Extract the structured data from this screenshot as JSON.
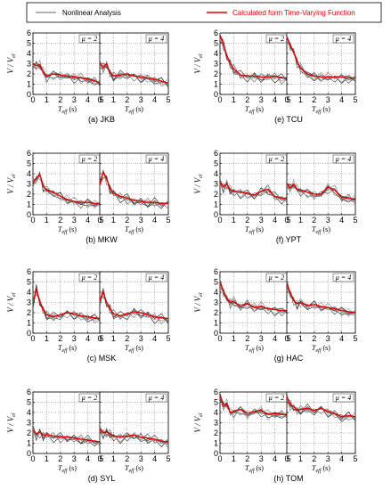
{
  "legend": {
    "nonlinear": "Nonlinear Analysis",
    "calculated": "Calculated form Time-Varying Function",
    "nonlinear_color": "#666666",
    "calculated_color": "#e00000"
  },
  "axes_common": {
    "xlabel": "T",
    "xlabel_sub": "eff",
    "xlabel_unit": " (s)",
    "ylabel": "V",
    "ylabel_mid": " / V",
    "ylabel_sub": "el",
    "xlim": [
      0,
      5
    ],
    "ylim": [
      0,
      6
    ],
    "xticks": [
      0,
      1,
      2,
      3,
      4,
      5
    ],
    "yticks": [
      0,
      1,
      2,
      3,
      4,
      5,
      6
    ]
  },
  "panel_labels": [
    "(a) JKB",
    "(e) TCU",
    "(b) MKW",
    "(f) YPT",
    "(c) MSK",
    "(g) HAC",
    "(d) SYL",
    "(h) TOM"
  ],
  "mu_labels": [
    "μ = 2",
    "μ = 4"
  ],
  "chart_data": [
    {
      "type": "line",
      "group": "(a) JKB",
      "mu": "μ = 2",
      "x": [
        0,
        0.25,
        0.5,
        0.75,
        1.0,
        1.5,
        2.0,
        2.5,
        3.0,
        3.5,
        4.0,
        4.5,
        5.0
      ],
      "series": [
        {
          "name": "Calculated form Time-Varying Function",
          "values": [
            3.0,
            2.8,
            2.9,
            2.2,
            1.8,
            2.0,
            1.9,
            1.8,
            1.7,
            1.6,
            1.5,
            1.3,
            1.1
          ]
        }
      ]
    },
    {
      "type": "line",
      "group": "(a) JKB",
      "mu": "μ = 4",
      "x": [
        0,
        0.25,
        0.5,
        0.75,
        1.0,
        1.5,
        2.0,
        2.5,
        3.0,
        3.5,
        4.0,
        4.5,
        5.0
      ],
      "series": [
        {
          "name": "Calculated form Time-Varying Function",
          "values": [
            3.1,
            2.6,
            3.0,
            2.1,
            1.8,
            1.9,
            2.0,
            1.8,
            1.7,
            1.6,
            1.5,
            1.3,
            1.1
          ]
        }
      ]
    },
    {
      "type": "line",
      "group": "(e) TCU",
      "mu": "μ = 2",
      "x": [
        0,
        0.25,
        0.5,
        0.75,
        1.0,
        1.5,
        2.0,
        2.5,
        3.0,
        3.5,
        4.0,
        4.5,
        5.0
      ],
      "series": [
        {
          "name": "Calculated form Time-Varying Function",
          "values": [
            5.8,
            4.9,
            3.8,
            3.0,
            2.5,
            1.9,
            1.8,
            1.8,
            1.7,
            1.7,
            1.8,
            1.6,
            1.6
          ]
        }
      ]
    },
    {
      "type": "line",
      "group": "(e) TCU",
      "mu": "μ = 4",
      "x": [
        0,
        0.25,
        0.5,
        0.75,
        1.0,
        1.5,
        2.0,
        2.5,
        3.0,
        3.5,
        4.0,
        4.5,
        5.0
      ],
      "series": [
        {
          "name": "Calculated form Time-Varying Function",
          "values": [
            5.6,
            4.8,
            4.2,
            3.2,
            2.6,
            2.0,
            1.8,
            1.7,
            1.7,
            1.7,
            1.7,
            1.6,
            1.6
          ]
        }
      ]
    },
    {
      "type": "line",
      "group": "(b) MKW",
      "mu": "μ = 2",
      "x": [
        0,
        0.25,
        0.5,
        0.75,
        1.0,
        1.5,
        2.0,
        2.5,
        3.0,
        3.5,
        4.0,
        4.5,
        5.0
      ],
      "series": [
        {
          "name": "Calculated form Time-Varying Function",
          "values": [
            3.1,
            3.6,
            3.9,
            2.8,
            2.4,
            2.2,
            1.8,
            1.5,
            1.3,
            1.2,
            1.2,
            1.1,
            1.1
          ]
        }
      ]
    },
    {
      "type": "line",
      "group": "(b) MKW",
      "mu": "μ = 4",
      "x": [
        0,
        0.25,
        0.5,
        0.75,
        1.0,
        1.5,
        2.0,
        2.5,
        3.0,
        3.5,
        4.0,
        4.5,
        5.0
      ],
      "series": [
        {
          "name": "Calculated form Time-Varying Function",
          "values": [
            2.9,
            4.2,
            3.5,
            2.6,
            2.1,
            1.8,
            1.6,
            1.4,
            1.3,
            1.2,
            1.2,
            1.1,
            1.1
          ]
        }
      ]
    },
    {
      "type": "line",
      "group": "(f) YPT",
      "mu": "μ = 2",
      "x": [
        0,
        0.25,
        0.5,
        0.75,
        1.0,
        1.5,
        2.0,
        2.5,
        3.0,
        3.5,
        4.0,
        4.5,
        5.0
      ],
      "series": [
        {
          "name": "Calculated form Time-Varying Function",
          "values": [
            3.2,
            2.7,
            3.0,
            2.4,
            2.3,
            2.2,
            2.1,
            1.9,
            2.3,
            2.5,
            1.8,
            1.6,
            1.6
          ]
        }
      ]
    },
    {
      "type": "line",
      "group": "(f) YPT",
      "mu": "μ = 4",
      "x": [
        0,
        0.25,
        0.5,
        0.75,
        1.0,
        1.5,
        2.0,
        2.5,
        3.0,
        3.5,
        4.0,
        4.5,
        5.0
      ],
      "series": [
        {
          "name": "Calculated form Time-Varying Function",
          "values": [
            3.1,
            2.6,
            3.0,
            2.5,
            2.4,
            2.2,
            2.0,
            2.0,
            2.7,
            2.4,
            1.7,
            1.6,
            1.5
          ]
        }
      ]
    },
    {
      "type": "line",
      "group": "(c) MSK",
      "mu": "μ = 2",
      "x": [
        0,
        0.25,
        0.5,
        0.75,
        1.0,
        1.5,
        2.0,
        2.5,
        3.0,
        3.5,
        4.0,
        4.5,
        5.0
      ],
      "series": [
        {
          "name": "Calculated form Time-Varying Function",
          "values": [
            3.0,
            4.3,
            3.1,
            2.3,
            1.8,
            1.6,
            1.8,
            2.0,
            1.9,
            1.7,
            1.6,
            1.5,
            1.4
          ]
        }
      ]
    },
    {
      "type": "line",
      "group": "(c) MSK",
      "mu": "μ = 4",
      "x": [
        0,
        0.25,
        0.5,
        0.75,
        1.0,
        1.5,
        2.0,
        2.5,
        3.0,
        3.5,
        4.0,
        4.5,
        5.0
      ],
      "series": [
        {
          "name": "Calculated form Time-Varying Function",
          "values": [
            3.2,
            4.0,
            3.0,
            2.4,
            1.9,
            1.7,
            1.9,
            2.1,
            2.0,
            1.8,
            1.6,
            1.5,
            1.4
          ]
        }
      ]
    },
    {
      "type": "line",
      "group": "(g) HAC",
      "mu": "μ = 2",
      "x": [
        0,
        0.25,
        0.5,
        0.75,
        1.0,
        1.5,
        2.0,
        2.5,
        3.0,
        3.5,
        4.0,
        4.5,
        5.0
      ],
      "series": [
        {
          "name": "Calculated form Time-Varying Function",
          "values": [
            5.0,
            4.1,
            3.4,
            3.0,
            3.1,
            2.6,
            2.9,
            2.5,
            2.6,
            2.4,
            2.3,
            2.2,
            2.2
          ]
        }
      ]
    },
    {
      "type": "line",
      "group": "(g) HAC",
      "mu": "μ = 4",
      "x": [
        0,
        0.25,
        0.5,
        0.75,
        1.0,
        1.5,
        2.0,
        2.5,
        3.0,
        3.5,
        4.0,
        4.5,
        5.0
      ],
      "series": [
        {
          "name": "Calculated form Time-Varying Function",
          "values": [
            4.8,
            4.0,
            3.2,
            2.9,
            3.0,
            2.7,
            2.8,
            2.6,
            2.5,
            2.4,
            2.2,
            2.1,
            2.0
          ]
        }
      ]
    },
    {
      "type": "line",
      "group": "(d) SYL",
      "mu": "μ = 2",
      "x": [
        0,
        0.25,
        0.5,
        0.75,
        1.0,
        1.5,
        2.0,
        2.5,
        3.0,
        3.5,
        4.0,
        4.5,
        5.0
      ],
      "series": [
        {
          "name": "Calculated form Time-Varying Function",
          "values": [
            2.3,
            1.9,
            2.1,
            1.8,
            1.8,
            1.7,
            1.6,
            1.6,
            1.5,
            1.4,
            1.3,
            1.2,
            1.1
          ]
        }
      ]
    },
    {
      "type": "line",
      "group": "(d) SYL",
      "mu": "μ = 4",
      "x": [
        0,
        0.25,
        0.5,
        0.75,
        1.0,
        1.5,
        2.0,
        2.5,
        3.0,
        3.5,
        4.0,
        4.5,
        5.0
      ],
      "series": [
        {
          "name": "Calculated form Time-Varying Function",
          "values": [
            2.4,
            2.0,
            2.1,
            1.9,
            1.7,
            1.6,
            1.7,
            1.8,
            1.6,
            1.5,
            1.4,
            1.2,
            1.1
          ]
        }
      ]
    },
    {
      "type": "line",
      "group": "(h) TOM",
      "mu": "μ = 2",
      "x": [
        0,
        0.25,
        0.5,
        0.75,
        1.0,
        1.5,
        2.0,
        2.5,
        3.0,
        3.5,
        4.0,
        4.5,
        5.0
      ],
      "series": [
        {
          "name": "Calculated form Time-Varying Function",
          "values": [
            5.8,
            4.6,
            4.9,
            4.0,
            4.1,
            4.3,
            3.9,
            4.1,
            4.2,
            3.8,
            3.9,
            3.8,
            3.8
          ]
        }
      ]
    },
    {
      "type": "line",
      "group": "(h) TOM",
      "mu": "μ = 4",
      "x": [
        0,
        0.25,
        0.5,
        0.75,
        1.0,
        1.5,
        2.0,
        2.5,
        3.0,
        3.5,
        4.0,
        4.5,
        5.0
      ],
      "series": [
        {
          "name": "Calculated form Time-Varying Function",
          "values": [
            5.6,
            4.7,
            4.6,
            4.2,
            4.3,
            4.4,
            4.2,
            4.4,
            4.1,
            3.9,
            3.6,
            3.7,
            3.6
          ]
        }
      ]
    }
  ]
}
